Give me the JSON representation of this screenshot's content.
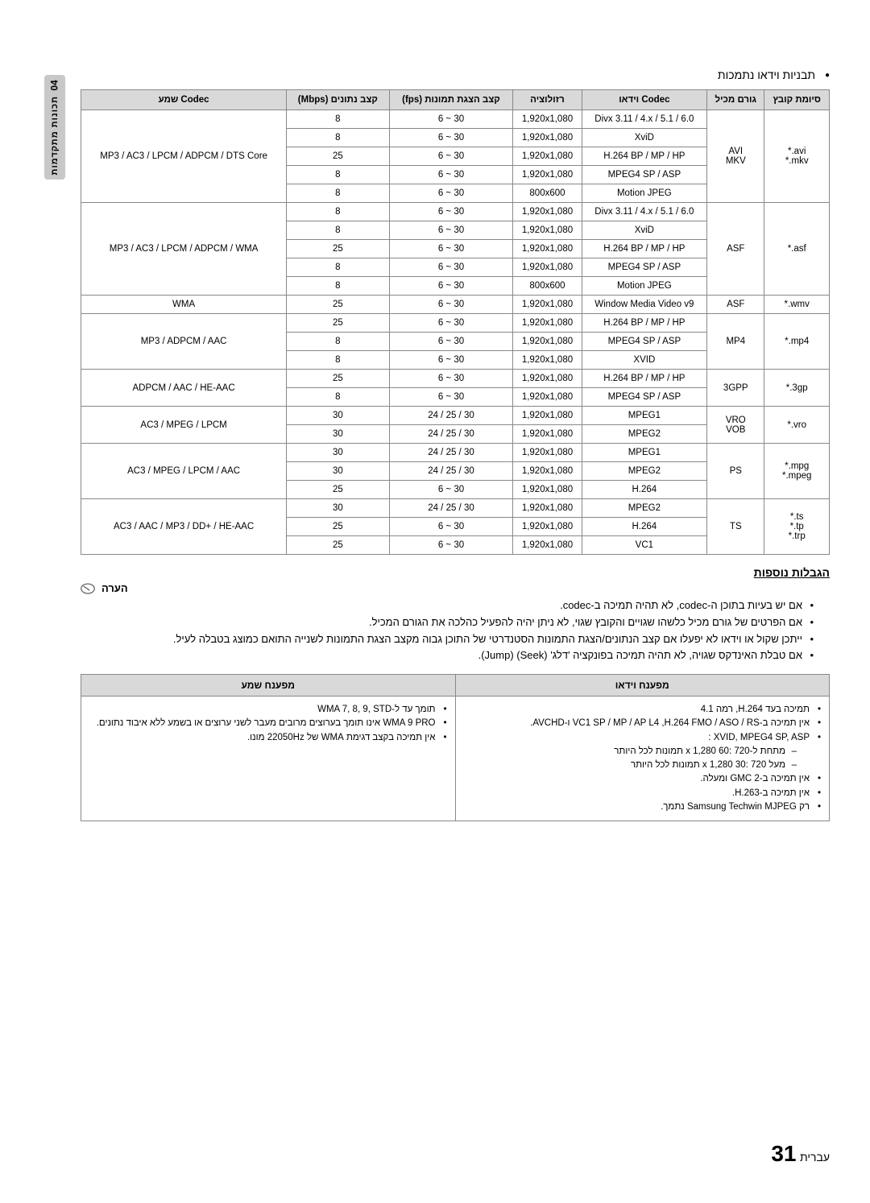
{
  "side_tab": {
    "number": "04",
    "text": "תכונות מתקדמות"
  },
  "top_bullet": "תבניות וידאו נתמכות",
  "codec_table": {
    "headers": [
      "סיומת קובץ",
      "גורם מכיל",
      "Codec וידאו",
      "רזולוציה",
      "קצב הצגת תמונות (fps)",
      "קצב נתונים (Mbps)",
      "Codec שמע"
    ],
    "groups": [
      {
        "file_ext": "*.avi\n*.mkv",
        "container": "AVI\nMKV",
        "audio": "MP3 / AC3 / LPCM / ADPCM / DTS Core",
        "rows": [
          {
            "video": "Divx 3.11 / 4.x / 5.1 / 6.0",
            "res": "1,920x1,080",
            "fps": "6 ~ 30",
            "rate": "8"
          },
          {
            "video": "XviD",
            "res": "1,920x1,080",
            "fps": "6 ~ 30",
            "rate": "8"
          },
          {
            "video": "H.264 BP / MP / HP",
            "res": "1,920x1,080",
            "fps": "6 ~ 30",
            "rate": "25"
          },
          {
            "video": "MPEG4 SP / ASP",
            "res": "1,920x1,080",
            "fps": "6 ~ 30",
            "rate": "8"
          },
          {
            "video": "Motion JPEG",
            "res": "800x600",
            "fps": "6 ~ 30",
            "rate": "8"
          }
        ]
      },
      {
        "file_ext": "*.asf",
        "container": "ASF",
        "audio": "MP3 / AC3 / LPCM / ADPCM / WMA",
        "rows": [
          {
            "video": "Divx 3.11 / 4.x / 5.1 / 6.0",
            "res": "1,920x1,080",
            "fps": "6 ~ 30",
            "rate": "8"
          },
          {
            "video": "XviD",
            "res": "1,920x1,080",
            "fps": "6 ~ 30",
            "rate": "8"
          },
          {
            "video": "H.264 BP / MP / HP",
            "res": "1,920x1,080",
            "fps": "6 ~ 30",
            "rate": "25"
          },
          {
            "video": "MPEG4 SP / ASP",
            "res": "1,920x1,080",
            "fps": "6 ~ 30",
            "rate": "8"
          },
          {
            "video": "Motion JPEG",
            "res": "800x600",
            "fps": "6 ~ 30",
            "rate": "8"
          }
        ]
      },
      {
        "file_ext": "*.wmv",
        "container": "ASF",
        "audio": "WMA",
        "rows": [
          {
            "video": "Window Media Video v9",
            "res": "1,920x1,080",
            "fps": "6 ~ 30",
            "rate": "25"
          }
        ]
      },
      {
        "file_ext": "*.mp4",
        "container": "MP4",
        "audio": "MP3 / ADPCM / AAC",
        "rows": [
          {
            "video": "H.264 BP / MP / HP",
            "res": "1,920x1,080",
            "fps": "6 ~ 30",
            "rate": "25"
          },
          {
            "video": "MPEG4 SP / ASP",
            "res": "1,920x1,080",
            "fps": "6 ~ 30",
            "rate": "8"
          },
          {
            "video": "XVID",
            "res": "1,920x1,080",
            "fps": "6 ~ 30",
            "rate": "8"
          }
        ]
      },
      {
        "file_ext": "*.3gp",
        "container": "3GPP",
        "audio": "ADPCM / AAC / HE-AAC",
        "rows": [
          {
            "video": "H.264 BP / MP / HP",
            "res": "1,920x1,080",
            "fps": "6 ~ 30",
            "rate": "25"
          },
          {
            "video": "MPEG4 SP / ASP",
            "res": "1,920x1,080",
            "fps": "6 ~ 30",
            "rate": "8"
          }
        ]
      },
      {
        "file_ext": "*.vro",
        "container": "VRO\nVOB",
        "audio": "AC3 / MPEG / LPCM",
        "rows": [
          {
            "video": "MPEG1",
            "res": "1,920x1,080",
            "fps": "24 / 25 / 30",
            "rate": "30"
          },
          {
            "video": "MPEG2",
            "res": "1,920x1,080",
            "fps": "24 / 25 / 30",
            "rate": "30"
          }
        ]
      },
      {
        "file_ext": "*.mpg\n*.mpeg",
        "container": "PS",
        "audio": "AC3 / MPEG / LPCM / AAC",
        "rows": [
          {
            "video": "MPEG1",
            "res": "1,920x1,080",
            "fps": "24 / 25 / 30",
            "rate": "30"
          },
          {
            "video": "MPEG2",
            "res": "1,920x1,080",
            "fps": "24 / 25 / 30",
            "rate": "30"
          },
          {
            "video": "H.264",
            "res": "1,920x1,080",
            "fps": "6 ~ 30",
            "rate": "25"
          }
        ]
      },
      {
        "file_ext": "*.ts\n*.tp\n*.trp",
        "container": "TS",
        "audio": "AC3 / AAC / MP3 / DD+ / HE-AAC",
        "rows": [
          {
            "video": "MPEG2",
            "res": "1,920x1,080",
            "fps": "24 / 25 / 30",
            "rate": "30"
          },
          {
            "video": "H.264",
            "res": "1,920x1,080",
            "fps": "6 ~ 30",
            "rate": "25"
          },
          {
            "video": "VC1",
            "res": "1,920x1,080",
            "fps": "6 ~ 30",
            "rate": "25"
          }
        ]
      }
    ]
  },
  "limitations_title": "הגבלות נוספות",
  "note_label": "הערה",
  "notes": [
    "אם יש בעיות בתוכן ה-codec, לא תהיה תמיכה ב-codec.",
    "אם הפרטים של גורם מכיל כלשהו שגויים והקובץ שגוי, לא ניתן יהיה להפעיל כהלכה את הגורם המכיל.",
    "ייתכן שקול או וידאו לא יפעלו אם קצב הנתונים/הצגת התמונות הסטנדרטי של התוכן גבוה מקצב הצגת התמונות לשנייה התואם כמוצג בטבלה לעיל.",
    "אם טבלת האינדקס שגויה, לא תהיה תמיכה בפונקציה 'דלג' (Seek) (Jump)."
  ],
  "decoder_table": {
    "headers": [
      "מפענח וידאו",
      "מפענח שמע"
    ],
    "video": {
      "items": [
        "תמיכה בעד H.264, רמה 4.1",
        "אין תמיכה ב-H.264 FMO / ASO / RS, ‏VC1 SP / MP / AP L4 ו-AVCHD.",
        "XVID, MPEG4 SP, ASP :"
      ],
      "sub": [
        "מתחת ל-720 :60 x 1,280 תמונות לכל היותר",
        "מעל 720 :30 x 1,280 תמונות לכל היותר"
      ],
      "items2": [
        "אין תמיכה ב-GMC 2 ומעלה.",
        "אין תמיכה ב-H.263.",
        "רק Samsung Techwin MJPEG נתמך."
      ]
    },
    "audio": {
      "items": [
        "תומך עד ל-WMA 7, 8, 9, STD",
        "WMA 9 PRO אינו תומך בערוצים מרובים מעבר לשני ערוצים או בשמע ללא איבוד נתונים.",
        "אין תמיכה בקצב דגימת WMA של 22050Hz מונו."
      ]
    }
  },
  "page": {
    "lang": "עברית",
    "num": "31"
  }
}
